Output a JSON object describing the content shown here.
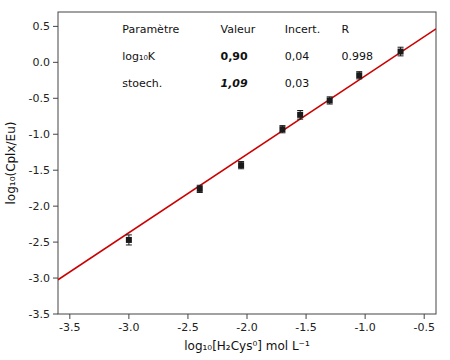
{
  "chart_data": {
    "type": "scatter",
    "xlabel": "log₁₀[H₂Cys⁰]  mol L⁻¹",
    "ylabel": "log₁₀(Cplx/Eu)",
    "xlim": [
      -3.6,
      -0.4
    ],
    "ylim": [
      -3.5,
      0.7
    ],
    "xticks": [
      -3.5,
      {
        "value": -3.0,
        "label": "-3.0"
      },
      -2.5,
      {
        "value": -2.0,
        "label": "-2.0"
      },
      -1.5,
      {
        "value": -1.0,
        "label": "-1.0"
      },
      -0.5
    ],
    "yticks": [
      -3.5,
      {
        "value": -3.0,
        "label": "-3.0"
      },
      -2.5,
      {
        "value": -2.0,
        "label": "-2.0"
      },
      -1.5,
      {
        "value": -1.0,
        "label": "-1.0"
      },
      -0.5,
      {
        "value": 0.0,
        "label": "0.0"
      },
      0.5
    ],
    "grid": false,
    "series": [
      {
        "type": "scatter",
        "marker": "square",
        "color": "#1a1a1a",
        "x": [
          -3.0,
          -2.4,
          -2.05,
          -1.7,
          -1.55,
          -1.3,
          -1.05,
          -0.7
        ],
        "values": [
          -2.47,
          -1.76,
          -1.43,
          -0.93,
          -0.73,
          -0.53,
          -0.18,
          0.15
        ],
        "errors": [
          0.07,
          0.05,
          0.05,
          0.05,
          0.06,
          0.05,
          0.05,
          0.06
        ]
      },
      {
        "type": "line",
        "line_style": "solid",
        "color": "#cc0000",
        "x": [
          -3.6,
          -0.4
        ],
        "values": [
          -3.024,
          0.464
        ]
      }
    ],
    "annotations": [
      [
        "Paramètre",
        "Valeur",
        "Incert.",
        "R"
      ],
      [
        "log₁₀K",
        "0,90",
        "0,04",
        "0.998"
      ],
      [
        "stoech.",
        "1,09",
        "0,03"
      ]
    ]
  }
}
